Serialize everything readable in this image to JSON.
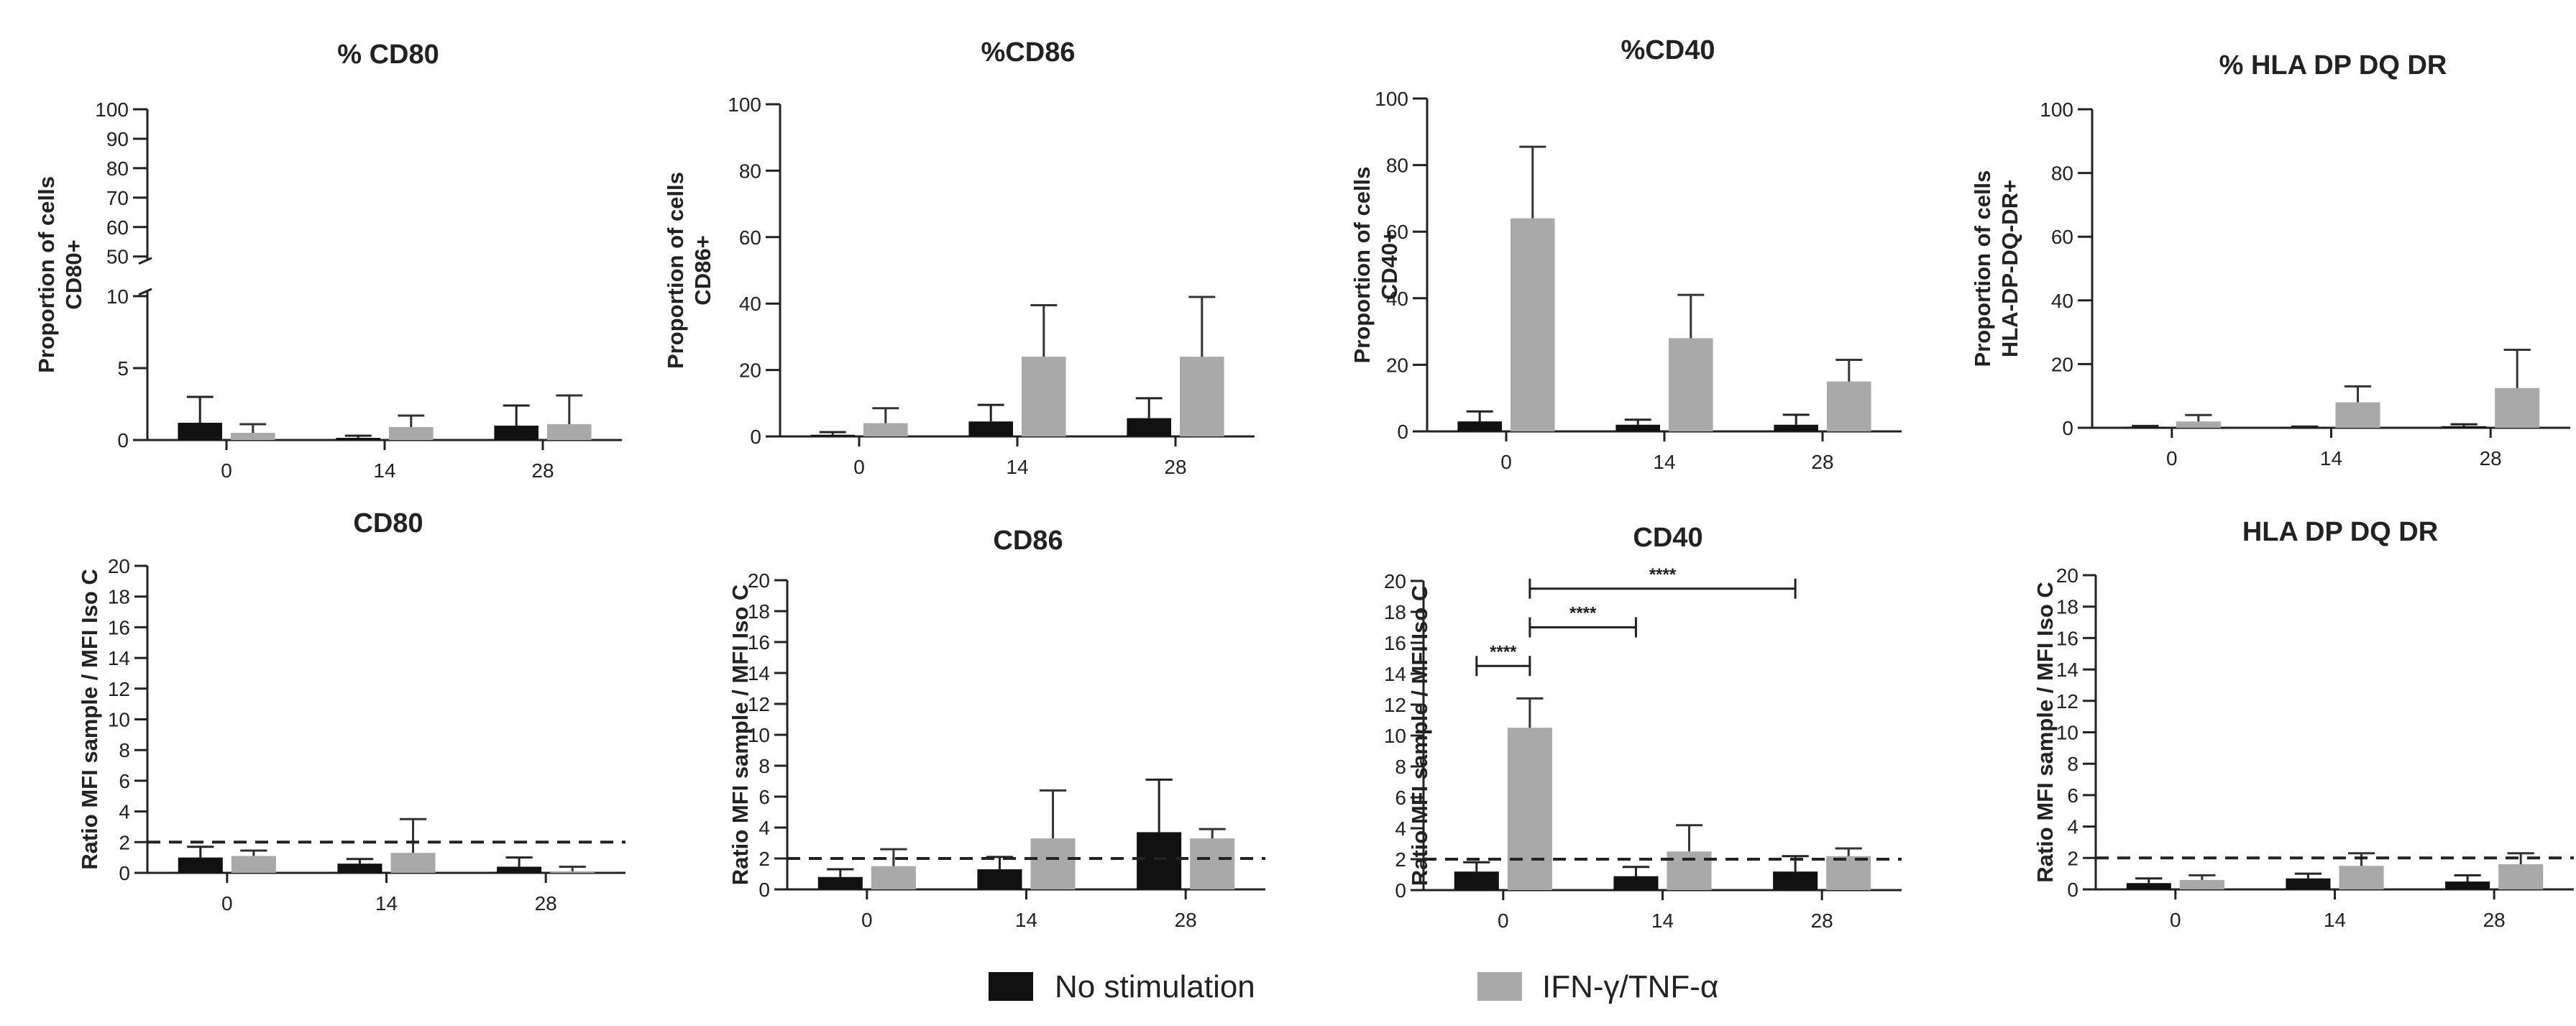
{
  "colors": {
    "no_stimulation": "#111111",
    "ifn_tnf": "#a9a9a9",
    "axis": "#222222"
  },
  "legend": {
    "no_stimulation_label": "No stimulation",
    "ifn_tnf_label": "IFN-γ/TNF-α"
  },
  "chart_data": [
    {
      "id": "pct-cd80",
      "type": "bar",
      "title": "% CD80",
      "ylabel_lines": [
        "Proportion of cells",
        "CD80+"
      ],
      "categories": [
        "0",
        "14",
        "28"
      ],
      "axis_break": true,
      "lower_ticks": [
        0,
        5,
        10
      ],
      "upper_ticks": [
        50,
        60,
        70,
        80,
        90,
        100
      ],
      "lower_ylim": [
        0,
        10
      ],
      "upper_ylim": [
        50,
        100
      ],
      "series": [
        {
          "name": "No stimulation",
          "values": [
            1.2,
            0.15,
            1.0
          ],
          "errors": [
            1.8,
            0.15,
            1.4
          ]
        },
        {
          "name": "IFN-γ/TNF-α",
          "values": [
            0.5,
            0.9,
            1.1
          ],
          "errors": [
            0.6,
            0.8,
            2.0
          ]
        }
      ]
    },
    {
      "id": "pct-cd86",
      "type": "bar",
      "title": "%CD86",
      "ylabel_lines": [
        "Proportion of cells",
        "CD86+"
      ],
      "categories": [
        "0",
        "14",
        "28"
      ],
      "ylim": [
        0,
        100
      ],
      "ticks": [
        0,
        20,
        40,
        60,
        80,
        100
      ],
      "series": [
        {
          "name": "No stimulation",
          "values": [
            0.5,
            4.5,
            5.5
          ],
          "errors": [
            0.8,
            5,
            6
          ]
        },
        {
          "name": "IFN-γ/TNF-α",
          "values": [
            4,
            24,
            24
          ],
          "errors": [
            4.5,
            15.5,
            18
          ]
        }
      ]
    },
    {
      "id": "pct-cd40",
      "type": "bar",
      "title": "%CD40",
      "ylabel_lines": [
        "Proportion of cells",
        "CD40+"
      ],
      "categories": [
        "0",
        "14",
        "28"
      ],
      "ylim": [
        0,
        100
      ],
      "ticks": [
        0,
        20,
        40,
        60,
        80,
        100
      ],
      "series": [
        {
          "name": "No stimulation",
          "values": [
            3,
            2,
            2
          ],
          "errors": [
            3,
            1.5,
            3
          ]
        },
        {
          "name": "IFN-γ/TNF-α",
          "values": [
            64,
            28,
            15
          ],
          "errors": [
            21.5,
            13,
            6.5
          ]
        }
      ]
    },
    {
      "id": "pct-hla",
      "type": "bar",
      "title": "% HLA DP DQ DR",
      "ylabel_lines": [
        "Proportion of cells",
        "HLA-DP-DQ-DR+"
      ],
      "categories": [
        "0",
        "14",
        "28"
      ],
      "ylim": [
        0,
        100
      ],
      "ticks": [
        0,
        20,
        40,
        60,
        80,
        100
      ],
      "series": [
        {
          "name": "No stimulation",
          "values": [
            0.3,
            0.2,
            0.5
          ],
          "errors": [
            0.3,
            0.2,
            0.6
          ]
        },
        {
          "name": "IFN-γ/TNF-α",
          "values": [
            2,
            8,
            12.5
          ],
          "errors": [
            2,
            5,
            12
          ]
        }
      ]
    },
    {
      "id": "ratio-cd80",
      "type": "bar",
      "title": "CD80",
      "ylabel_lines": [
        "Ratio MFI sample / MFI Iso C"
      ],
      "categories": [
        "0",
        "14",
        "28"
      ],
      "ylim": [
        0,
        20
      ],
      "ticks": [
        0,
        2,
        4,
        6,
        8,
        10,
        12,
        14,
        16,
        18,
        20
      ],
      "reference_line": 2,
      "series": [
        {
          "name": "No stimulation",
          "values": [
            1.0,
            0.6,
            0.4
          ],
          "errors": [
            0.7,
            0.3,
            0.6
          ]
        },
        {
          "name": "IFN-γ/TNF-α",
          "values": [
            1.1,
            1.3,
            0.1
          ],
          "errors": [
            0.35,
            2.2,
            0.3
          ]
        }
      ]
    },
    {
      "id": "ratio-cd86",
      "type": "bar",
      "title": "CD86",
      "ylabel_lines": [
        "Ratio MFI sample / MFI Iso C"
      ],
      "categories": [
        "0",
        "14",
        "28"
      ],
      "ylim": [
        0,
        20
      ],
      "ticks": [
        0,
        2,
        4,
        6,
        8,
        10,
        12,
        14,
        16,
        18,
        20
      ],
      "reference_line": 2,
      "series": [
        {
          "name": "No stimulation",
          "values": [
            0.8,
            1.3,
            3.7
          ],
          "errors": [
            0.5,
            0.8,
            3.4
          ]
        },
        {
          "name": "IFN-γ/TNF-α",
          "values": [
            1.5,
            3.3,
            3.3
          ],
          "errors": [
            1.1,
            3.1,
            0.6
          ]
        }
      ]
    },
    {
      "id": "ratio-cd40",
      "type": "bar",
      "title": "CD40",
      "ylabel_lines": [
        "Ratio MFI sample / MFI Iso C"
      ],
      "categories": [
        "0",
        "14",
        "28"
      ],
      "ylim": [
        0,
        20
      ],
      "ticks": [
        0,
        2,
        4,
        6,
        8,
        10,
        12,
        14,
        16,
        18,
        20
      ],
      "reference_line": 2,
      "series": [
        {
          "name": "No stimulation",
          "values": [
            1.2,
            0.9,
            1.2
          ],
          "errors": [
            0.6,
            0.6,
            1.0
          ]
        },
        {
          "name": "IFN-γ/TNF-α",
          "values": [
            10.5,
            2.5,
            2.2
          ],
          "errors": [
            1.9,
            1.7,
            0.5
          ]
        }
      ],
      "significance": [
        {
          "label": "****",
          "from": "0:No stimulation",
          "to": "0:IFN-γ/TNF-α",
          "y": 14.5
        },
        {
          "label": "****",
          "from": "0:IFN-γ/TNF-α",
          "to": "14:No stimulation",
          "y": 17.0
        },
        {
          "label": "****",
          "from": "0:IFN-γ/TNF-α",
          "to": "28:No stimulation",
          "y": 19.5
        }
      ]
    },
    {
      "id": "ratio-hla",
      "type": "bar",
      "title": "HLA DP DQ DR",
      "ylabel_lines": [
        "Ratio MFI sample / MFI Iso C"
      ],
      "categories": [
        "0",
        "14",
        "28"
      ],
      "ylim": [
        0,
        20
      ],
      "ticks": [
        0,
        2,
        4,
        6,
        8,
        10,
        12,
        14,
        16,
        18,
        20
      ],
      "reference_line": 2,
      "series": [
        {
          "name": "No stimulation",
          "values": [
            0.4,
            0.7,
            0.5
          ],
          "errors": [
            0.3,
            0.3,
            0.4
          ]
        },
        {
          "name": "IFN-γ/TNF-α",
          "values": [
            0.6,
            1.5,
            1.6
          ],
          "errors": [
            0.3,
            0.8,
            0.7
          ]
        }
      ]
    }
  ]
}
